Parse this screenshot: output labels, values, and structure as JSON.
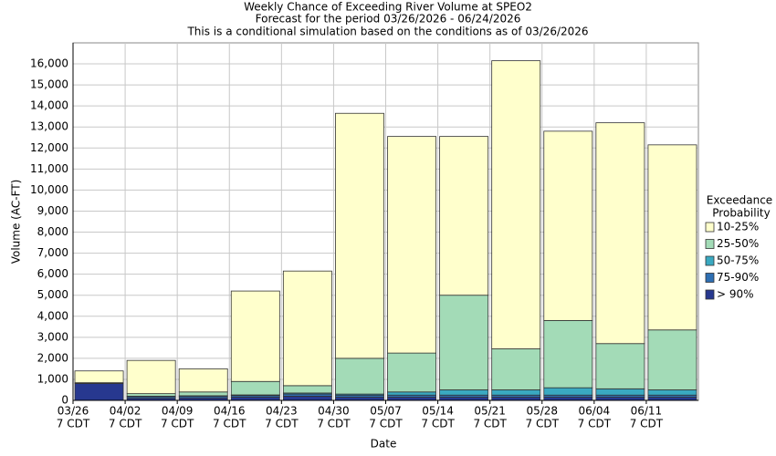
{
  "chart_data": {
    "type": "stacked_bar",
    "title": [
      "Weekly Chance of Exceeding River Volume at SPEO2",
      "Forecast for the period 03/26/2026 - 06/24/2026",
      "This is a conditional simulation based on the conditions as of 03/26/2026"
    ],
    "x_label": "Date",
    "y_label": "Volume (AC-FT)",
    "categories": [
      "03/26",
      "04/02",
      "04/09",
      "04/16",
      "04/23",
      "04/30",
      "05/07",
      "05/14",
      "05/21",
      "05/28",
      "06/04",
      "06/11"
    ],
    "tick_sublabel": "7 CDT",
    "legend_title": [
      "Exceedance",
      "Probability"
    ],
    "legend_position": "right",
    "grid": true,
    "ylim": [
      0,
      17000
    ],
    "yticks": [
      0,
      {
        "value": 1000,
        "label": "1,000"
      },
      {
        "value": 2000,
        "label": "2,000"
      },
      {
        "value": 3000,
        "label": "3,000"
      },
      {
        "value": 4000,
        "label": "4,000"
      },
      {
        "value": 5000,
        "label": "5,000"
      },
      {
        "value": 6000,
        "label": "6,000"
      },
      {
        "value": 7000,
        "label": "7,000"
      },
      {
        "value": 8000,
        "label": "8,000"
      },
      {
        "value": 9000,
        "label": "9,000"
      },
      {
        "value": 10000,
        "label": "10,000"
      },
      {
        "value": 11000,
        "label": "11,000"
      },
      {
        "value": 12000,
        "label": "12,000"
      },
      {
        "value": 13000,
        "label": "13,000"
      },
      {
        "value": 14000,
        "label": "14,000"
      },
      {
        "value": 15000,
        "label": "15,000"
      },
      {
        "value": 16000,
        "label": "16,000"
      }
    ],
    "series": [
      {
        "name": "> 90%",
        "color": "#27388f",
        "values": [
          800,
          100,
          120,
          150,
          200,
          150,
          150,
          150,
          150,
          150,
          150,
          150
        ]
      },
      {
        "name": "75-90%",
        "color": "#2e6fb3",
        "values": [
          10,
          80,
          80,
          80,
          100,
          100,
          100,
          100,
          100,
          100,
          100,
          100
        ]
      },
      {
        "name": "50-75%",
        "color": "#3aa9c1",
        "values": [
          10,
          20,
          20,
          30,
          50,
          50,
          150,
          250,
          250,
          350,
          300,
          250
        ]
      },
      {
        "name": "25-50%",
        "color": "#a3dbb7",
        "values": [
          20,
          120,
          180,
          640,
          350,
          1700,
          1850,
          4500,
          1950,
          3200,
          2150,
          2850
        ]
      },
      {
        "name": "10-25%",
        "color": "#ffffcc",
        "values": [
          560,
          1580,
          1100,
          4300,
          5450,
          11650,
          10300,
          7550,
          13700,
          9000,
          10500,
          8800
        ]
      }
    ]
  }
}
